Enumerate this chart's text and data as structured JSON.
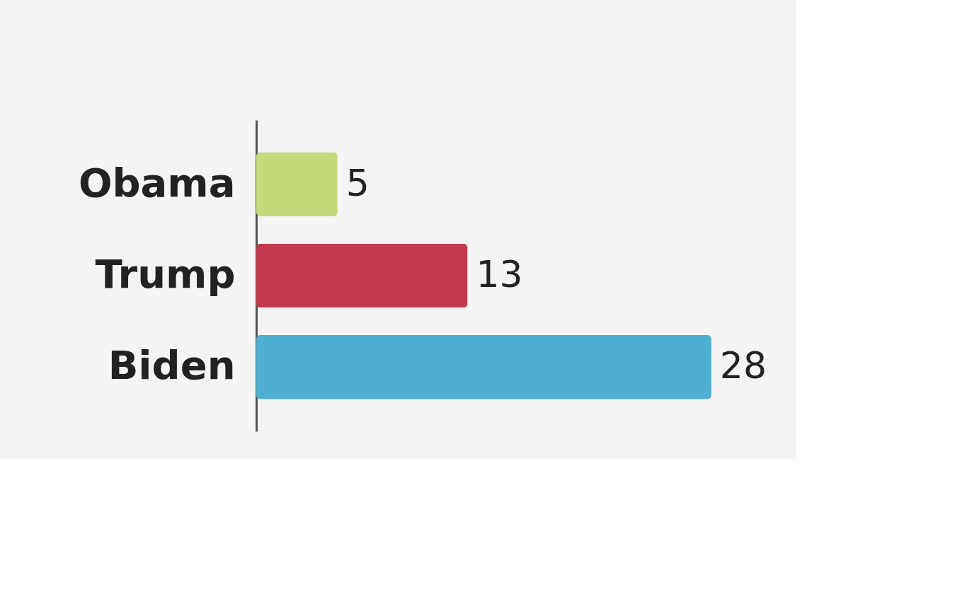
{
  "chart_data": {
    "type": "bar",
    "orientation": "horizontal",
    "categories": [
      "Obama",
      "Trump",
      "Biden"
    ],
    "values": [
      5,
      13,
      28
    ],
    "colors": [
      "#c5d97a",
      "#c2394f",
      "#4eaed3"
    ],
    "data_labels": true
  }
}
